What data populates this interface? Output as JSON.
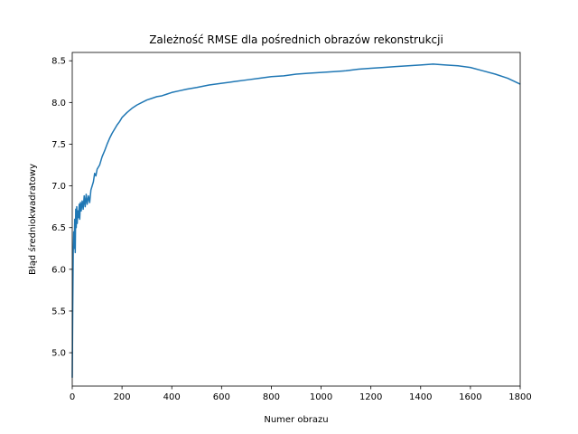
{
  "chart_data": {
    "type": "line",
    "title": "Zależność RMSE dla pośrednich obrazów rekonstrukcji",
    "xlabel": "Numer obrazu",
    "ylabel": "Błąd średniokwadratowy",
    "xlim": [
      0,
      1800
    ],
    "ylim": [
      4.6,
      8.6
    ],
    "xticks": [
      0,
      200,
      400,
      600,
      800,
      1000,
      1200,
      1400,
      1600,
      1800
    ],
    "xtick_labels": [
      "0",
      "200",
      "400",
      "600",
      "800",
      "1000",
      "1200",
      "1400",
      "1600",
      "1800"
    ],
    "yticks": [
      5.0,
      5.5,
      6.0,
      6.5,
      7.0,
      7.5,
      8.0,
      8.5
    ],
    "ytick_labels": [
      "5.0",
      "5.5",
      "6.0",
      "6.5",
      "7.0",
      "7.5",
      "8.0",
      "8.5"
    ],
    "grid": false,
    "legend": false,
    "series": [
      {
        "color": "#1f77b4",
        "x": [
          0,
          2,
          4,
          6,
          8,
          10,
          12,
          14,
          16,
          18,
          20,
          22,
          25,
          28,
          30,
          33,
          36,
          40,
          44,
          48,
          52,
          56,
          60,
          65,
          70,
          75,
          80,
          85,
          90,
          95,
          100,
          110,
          120,
          130,
          140,
          150,
          160,
          170,
          180,
          190,
          200,
          220,
          240,
          260,
          280,
          300,
          320,
          340,
          360,
          380,
          400,
          430,
          460,
          500,
          550,
          600,
          650,
          700,
          750,
          800,
          850,
          900,
          950,
          1000,
          1050,
          1100,
          1150,
          1200,
          1250,
          1300,
          1350,
          1400,
          1450,
          1500,
          1550,
          1600,
          1650,
          1700,
          1750,
          1800
        ],
        "y": [
          4.7,
          5.55,
          6.2,
          6.45,
          6.25,
          6.6,
          6.2,
          6.72,
          6.5,
          6.75,
          6.55,
          6.7,
          6.62,
          6.78,
          6.6,
          6.8,
          6.7,
          6.82,
          6.72,
          6.88,
          6.75,
          6.9,
          6.78,
          6.88,
          6.8,
          6.95,
          7.0,
          7.05,
          7.15,
          7.12,
          7.2,
          7.25,
          7.35,
          7.42,
          7.5,
          7.57,
          7.63,
          7.68,
          7.73,
          7.77,
          7.82,
          7.88,
          7.93,
          7.97,
          8.0,
          8.03,
          8.05,
          8.07,
          8.08,
          8.1,
          8.12,
          8.14,
          8.16,
          8.18,
          8.21,
          8.23,
          8.25,
          8.27,
          8.29,
          8.31,
          8.32,
          8.34,
          8.35,
          8.36,
          8.37,
          8.38,
          8.4,
          8.41,
          8.42,
          8.43,
          8.44,
          8.45,
          8.46,
          8.45,
          8.44,
          8.42,
          8.38,
          8.34,
          8.29,
          8.22
        ]
      }
    ]
  }
}
